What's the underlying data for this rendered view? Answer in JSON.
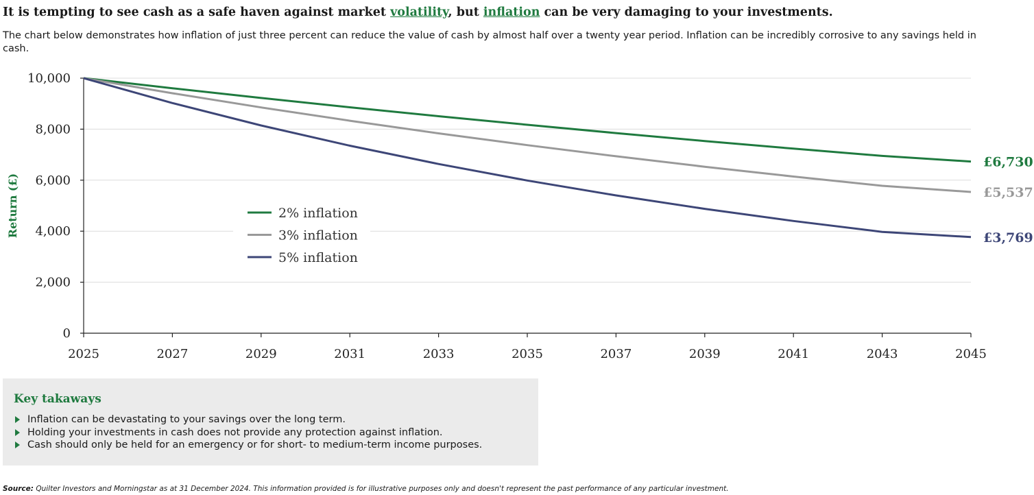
{
  "headline": {
    "before": "It is tempting to see cash as a safe haven against market ",
    "link1": "volatility",
    "middle": ", but ",
    "link2": "inflation",
    "after": " can be very damaging to your investments."
  },
  "intro": "The chart below demonstrates how inflation of just three percent can reduce the value of cash by almost half over a twenty year period. Inflation can be incredibly corrosive to any savings held in cash.",
  "chart_data": {
    "type": "line",
    "ylabel": "Return (£)",
    "xlabel": "",
    "ylim": [
      0,
      10000
    ],
    "xlim": [
      2025,
      2045
    ],
    "yticks": [
      0,
      2000,
      4000,
      6000,
      8000,
      10000
    ],
    "ytick_labels": [
      "0",
      "2,000",
      "4,000",
      "6,000",
      "8,000",
      "10,000"
    ],
    "xticks": [
      2025,
      2027,
      2029,
      2031,
      2033,
      2035,
      2037,
      2039,
      2041,
      2043,
      2045
    ],
    "xtick_labels": [
      "2025",
      "2027",
      "2029",
      "2031",
      "2033",
      "2035",
      "2037",
      "2039",
      "2041",
      "2043",
      "2045"
    ],
    "grid": true,
    "legend_position": "center-left",
    "series": [
      {
        "name": "2% inflation",
        "color": "#1f7a3f",
        "x": [
          2025,
          2027,
          2029,
          2031,
          2033,
          2035,
          2037,
          2039,
          2041,
          2043,
          2045
        ],
        "values": [
          10000,
          9604,
          9224,
          8858,
          8508,
          8171,
          7847,
          7536,
          7237,
          6951,
          6730
        ],
        "end_label": "£6,730"
      },
      {
        "name": "3% inflation",
        "color": "#999999",
        "x": [
          2025,
          2027,
          2029,
          2031,
          2033,
          2035,
          2037,
          2039,
          2041,
          2043,
          2045
        ],
        "values": [
          10000,
          9409,
          8853,
          8330,
          7837,
          7374,
          6938,
          6528,
          6142,
          5779,
          5537
        ],
        "end_label": "£5,537"
      },
      {
        "name": "5% inflation",
        "color": "#3d4677",
        "x": [
          2025,
          2027,
          2029,
          2031,
          2033,
          2035,
          2037,
          2039,
          2041,
          2043,
          2045
        ],
        "values": [
          10000,
          9025,
          8145,
          7351,
          6634,
          5987,
          5404,
          4877,
          4401,
          3972,
          3769
        ],
        "end_label": "£3,769"
      }
    ]
  },
  "takeaways": {
    "title": "Key takaways",
    "items": [
      "Inflation can be devastating to your savings over the long term.",
      "Holding your investments in cash does not provide any protection against inflation.",
      "Cash should only be held for an emergency or for short- to medium-term income purposes."
    ]
  },
  "source": {
    "label": "Source:",
    "text": " Quilter Investors and Morningstar as at 31 December 2024. This information provided is for illustrative purposes only and doesn't represent the past performance of any particular investment."
  }
}
